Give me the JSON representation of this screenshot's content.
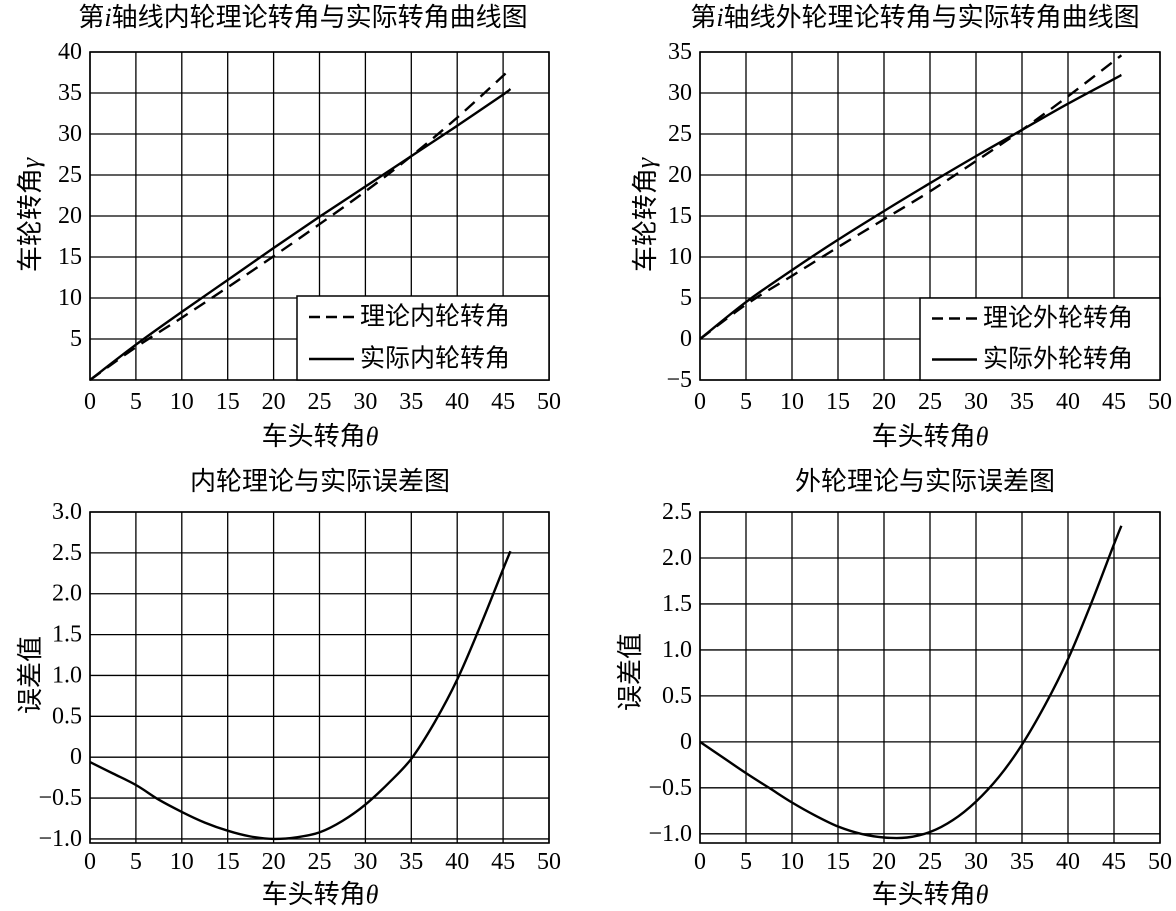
{
  "style": {
    "background": "#ffffff",
    "line_color": "#000000",
    "grid_color": "#000000"
  },
  "chart_data": [
    {
      "type": "line",
      "title": "第i轴线内轮理论转角与实际转角曲线图",
      "xlabel": "车头转角θ",
      "ylabel": "车轮转角γ",
      "xlim": [
        0,
        50
      ],
      "ylim": [
        0,
        40
      ],
      "xticks": [
        0,
        5,
        10,
        15,
        20,
        25,
        30,
        35,
        40,
        45,
        50
      ],
      "xtick_labels": [
        "0",
        "5",
        "10",
        "15",
        "20",
        "25",
        "30",
        "35",
        "40",
        "45",
        "50"
      ],
      "yticks": [
        5,
        10,
        15,
        20,
        25,
        30,
        35,
        40
      ],
      "ytick_labels": [
        "5",
        "10",
        "15",
        "20",
        "25",
        "30",
        "35",
        "40"
      ],
      "grid": true,
      "legend_position": "bottom-right",
      "x": [
        0,
        5,
        10,
        15,
        20,
        25,
        30,
        35,
        40,
        45,
        45.8
      ],
      "series": [
        {
          "name": "理论内轮转角",
          "line_style": "dashed",
          "values": [
            0,
            4.0,
            7.6,
            11.3,
            15.1,
            19.0,
            23.0,
            27.3,
            32.0,
            37.1,
            38.0
          ]
        },
        {
          "name": "实际内轮转角",
          "line_style": "solid",
          "values": [
            0,
            4.3,
            8.3,
            12.2,
            16.1,
            19.9,
            23.6,
            27.3,
            31.0,
            34.8,
            35.5
          ]
        }
      ]
    },
    {
      "type": "line",
      "title": "第i轴线外轮理论转角与实际转角曲线图",
      "xlabel": "车头转角θ",
      "ylabel": "车轮转角γ",
      "xlim": [
        0,
        50
      ],
      "ylim": [
        -5,
        35
      ],
      "xticks": [
        0,
        5,
        10,
        15,
        20,
        25,
        30,
        35,
        40,
        45,
        50
      ],
      "xtick_labels": [
        "0",
        "5",
        "10",
        "15",
        "20",
        "25",
        "30",
        "35",
        "40",
        "45",
        "50"
      ],
      "yticks": [
        -5,
        0,
        5,
        10,
        15,
        20,
        25,
        30,
        35
      ],
      "ytick_labels": [
        "−5",
        "0",
        "5",
        "10",
        "15",
        "20",
        "25",
        "30",
        "35"
      ],
      "grid": true,
      "legend_position": "bottom-right",
      "x": [
        0,
        5,
        10,
        15,
        20,
        25,
        30,
        35,
        40,
        45,
        45.8
      ],
      "series": [
        {
          "name": "理论外轮转角",
          "line_style": "dashed",
          "values": [
            0,
            4.2,
            7.7,
            11.2,
            14.6,
            18.0,
            21.7,
            25.5,
            29.6,
            33.9,
            34.6
          ]
        },
        {
          "name": "实际外轮转角",
          "line_style": "solid",
          "values": [
            0,
            4.5,
            8.4,
            12.1,
            15.6,
            19.0,
            22.3,
            25.5,
            28.7,
            31.7,
            32.2
          ]
        }
      ]
    },
    {
      "type": "line",
      "title": "内轮理论与实际误差图",
      "xlabel": "车头转角θ",
      "ylabel": "误差值",
      "xlim": [
        0,
        50
      ],
      "ylim": [
        -1.05,
        3.0
      ],
      "xticks": [
        0,
        5,
        10,
        15,
        20,
        25,
        30,
        35,
        40,
        45,
        50
      ],
      "xtick_labels": [
        "0",
        "5",
        "10",
        "15",
        "20",
        "25",
        "30",
        "35",
        "40",
        "45",
        "50"
      ],
      "yticks": [
        -1.0,
        -0.5,
        0,
        0.5,
        1.0,
        1.5,
        2.0,
        2.5,
        3.0
      ],
      "ytick_labels": [
        "−1.0",
        "−0.5",
        "0",
        "0.5",
        "1.0",
        "1.5",
        "2.0",
        "2.5",
        "3.0"
      ],
      "grid": true,
      "x": [
        0,
        2.5,
        5,
        7.5,
        10,
        12.5,
        15,
        17.5,
        20,
        22.5,
        25,
        27.5,
        30,
        32.5,
        35,
        37.5,
        40,
        42.5,
        45,
        45.8
      ],
      "series": [
        {
          "line_style": "solid",
          "values": [
            -0.06,
            -0.2,
            -0.34,
            -0.52,
            -0.67,
            -0.8,
            -0.9,
            -0.97,
            -1.0,
            -0.98,
            -0.92,
            -0.78,
            -0.58,
            -0.32,
            -0.02,
            0.42,
            0.95,
            1.6,
            2.3,
            2.52
          ]
        }
      ]
    },
    {
      "type": "line",
      "title": "外轮理论与实际误差图",
      "xlabel": "车头转角θ",
      "ylabel": "误差值",
      "xlim": [
        0,
        50
      ],
      "ylim": [
        -1.1,
        2.5
      ],
      "xticks": [
        0,
        5,
        10,
        15,
        20,
        25,
        30,
        35,
        40,
        45,
        50
      ],
      "xtick_labels": [
        "0",
        "5",
        "10",
        "15",
        "20",
        "25",
        "30",
        "35",
        "40",
        "45",
        "50"
      ],
      "yticks": [
        -1.0,
        -0.5,
        0,
        0.5,
        1.0,
        1.5,
        2.0,
        2.5
      ],
      "ytick_labels": [
        "−1.0",
        "−0.5",
        "0",
        "0.5",
        "1.0",
        "1.5",
        "2.0",
        "2.5"
      ],
      "grid": true,
      "x": [
        0,
        2.5,
        5,
        7.5,
        10,
        12.5,
        15,
        17.5,
        20,
        22.5,
        25,
        27.5,
        30,
        32.5,
        35,
        37.5,
        40,
        42.5,
        45,
        45.8
      ],
      "series": [
        {
          "line_style": "solid",
          "values": [
            0,
            -0.17,
            -0.34,
            -0.5,
            -0.66,
            -0.8,
            -0.92,
            -1.0,
            -1.04,
            -1.04,
            -0.98,
            -0.85,
            -0.65,
            -0.38,
            -0.03,
            0.4,
            0.9,
            1.5,
            2.15,
            2.35
          ]
        }
      ]
    }
  ]
}
